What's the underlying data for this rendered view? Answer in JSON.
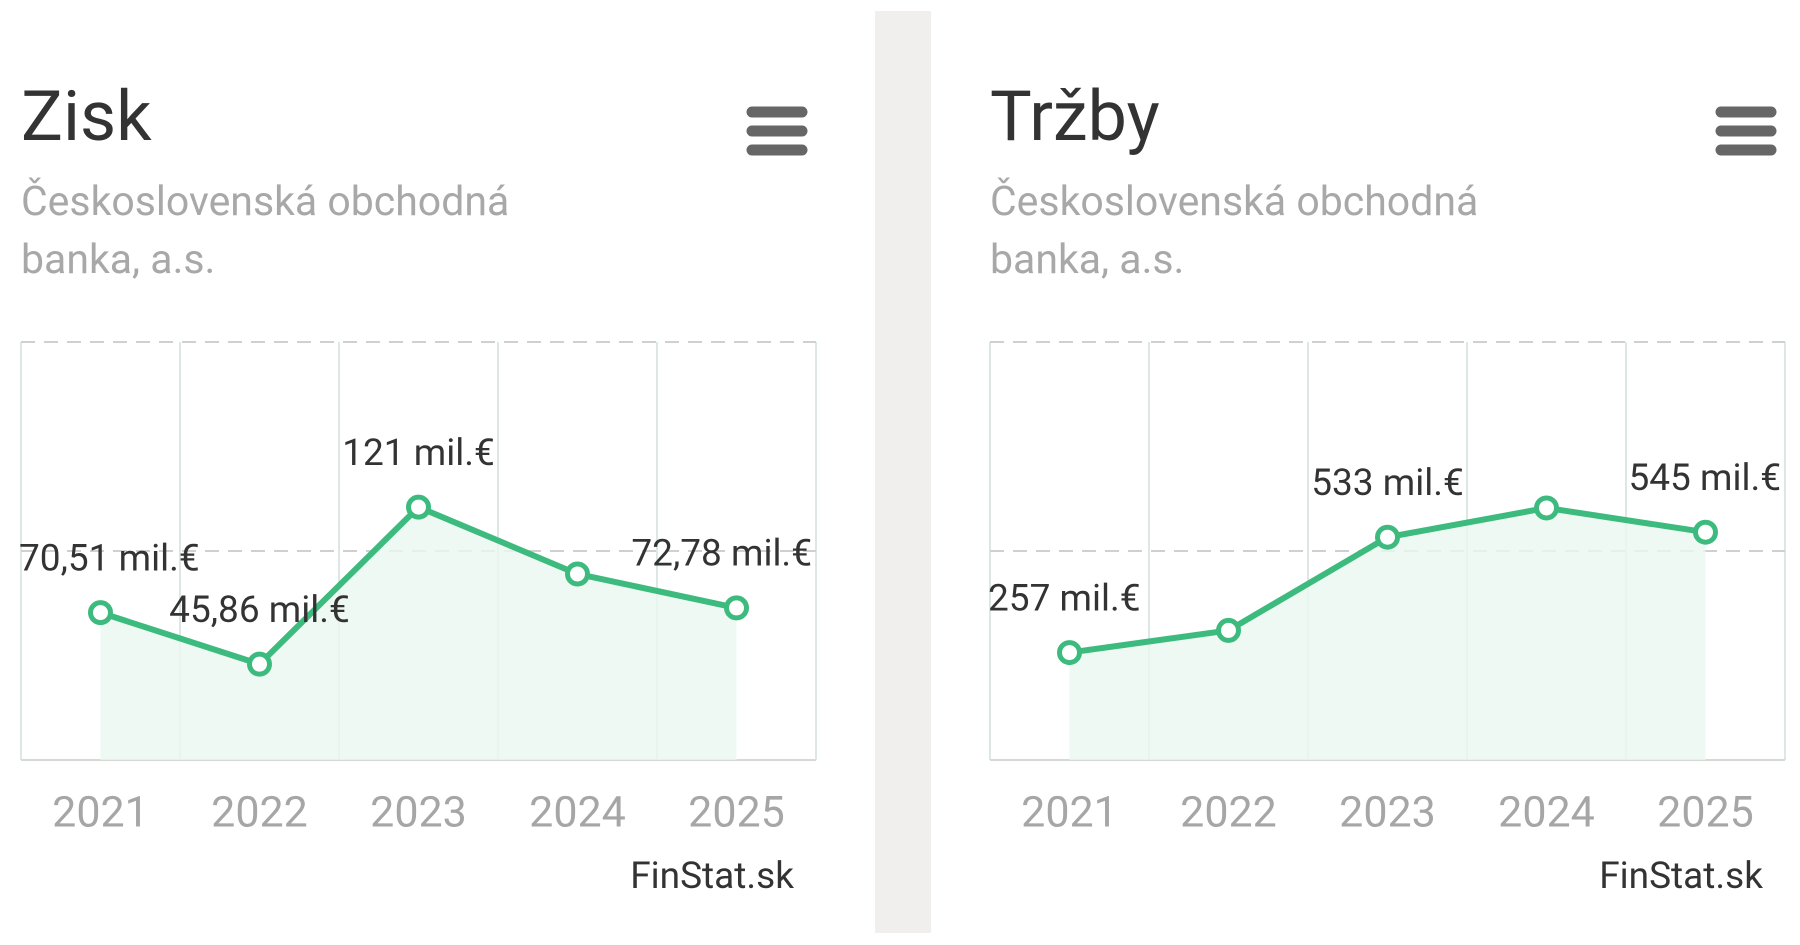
{
  "chart_data": [
    {
      "type": "line",
      "title": "Zisk",
      "subtitle": "Československá obchodná banka, a.s.",
      "source": "FinStat.sk",
      "categories": [
        "2021",
        "2022",
        "2023",
        "2024",
        "2025"
      ],
      "values": [
        70.51,
        45.86,
        121,
        89,
        72.78
      ],
      "value_labels": [
        "70,51 mil.€",
        "45,86 mil.€",
        "121 mil.€",
        null,
        "72,78 mil.€"
      ],
      "color": "#3dbb7f",
      "ylim": [
        0,
        200
      ],
      "yticks": [
        0,
        100,
        200
      ],
      "grid": true
    },
    {
      "type": "line",
      "title": "Tržby",
      "subtitle": "Československá obchodná banka, a.s.",
      "source": "FinStat.sk",
      "categories": [
        "2021",
        "2022",
        "2023",
        "2024",
        "2025"
      ],
      "values": [
        257,
        310,
        533,
        603,
        545
      ],
      "value_labels": [
        "257 mil.€",
        null,
        "533 mil.€",
        null,
        "545 mil.€"
      ],
      "color": "#3dbb7f",
      "ylim": [
        0,
        1000
      ],
      "yticks": [
        0,
        500,
        1000
      ],
      "grid": true
    }
  ]
}
